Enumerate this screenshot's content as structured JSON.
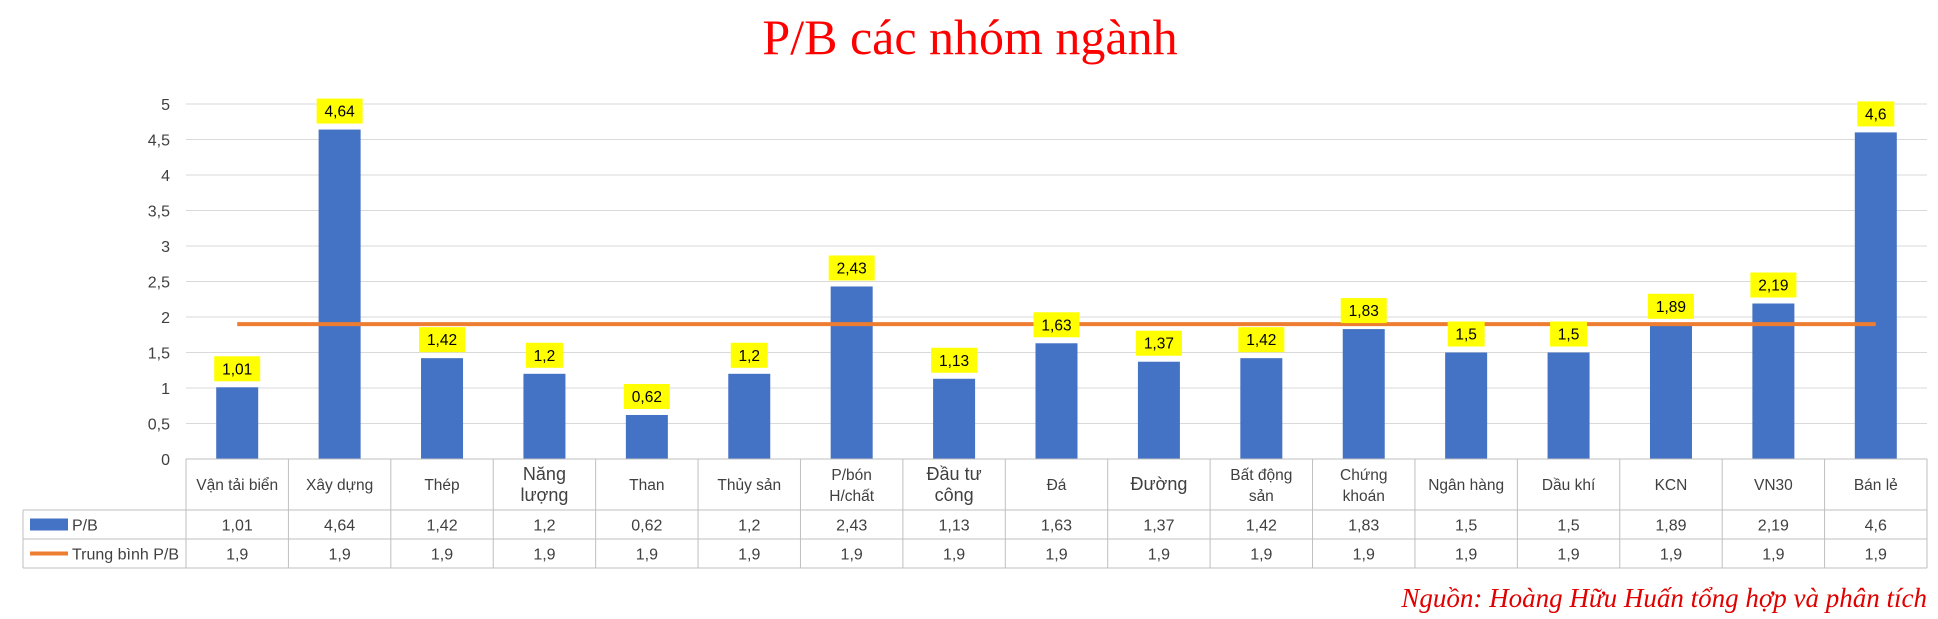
{
  "chart_data": {
    "type": "bar",
    "title": "P/B các nhóm ngành",
    "categories": [
      [
        "Vận tải biển"
      ],
      [
        "Xây dựng"
      ],
      [
        "Thép"
      ],
      [
        "Năng",
        "lượng"
      ],
      [
        "Than"
      ],
      [
        "Thủy sản"
      ],
      [
        "P/bón",
        "H/chất"
      ],
      [
        "Đầu tư",
        "công"
      ],
      [
        "Đá"
      ],
      [
        "Đường"
      ],
      [
        "Bất động",
        "sản"
      ],
      [
        "Chứng",
        "khoán"
      ],
      [
        "Ngân hàng"
      ],
      [
        "Dầu khí"
      ],
      [
        "KCN"
      ],
      [
        "VN30"
      ],
      [
        "Bán lẻ"
      ]
    ],
    "series": [
      {
        "name": "P/B",
        "kind": "bar",
        "color": "#4472c4",
        "values": [
          1.01,
          4.64,
          1.42,
          1.2,
          0.62,
          1.2,
          2.43,
          1.13,
          1.63,
          1.37,
          1.42,
          1.83,
          1.5,
          1.5,
          1.89,
          2.19,
          4.6
        ],
        "value_labels": [
          "1,01",
          "4,64",
          "1,42",
          "1,2",
          "0,62",
          "1,2",
          "2,43",
          "1,13",
          "1,63",
          "1,37",
          "1,42",
          "1,83",
          "1,5",
          "1,5",
          "1,89",
          "2,19",
          "4,6"
        ]
      },
      {
        "name": "Trung bình P/B",
        "kind": "line",
        "color": "#ed7d31",
        "values": [
          1.9,
          1.9,
          1.9,
          1.9,
          1.9,
          1.9,
          1.9,
          1.9,
          1.9,
          1.9,
          1.9,
          1.9,
          1.9,
          1.9,
          1.9,
          1.9,
          1.9
        ],
        "value_labels": [
          "1,9",
          "1,9",
          "1,9",
          "1,9",
          "1,9",
          "1,9",
          "1,9",
          "1,9",
          "1,9",
          "1,9",
          "1,9",
          "1,9",
          "1,9",
          "1,9",
          "1,9",
          "1,9",
          "1,9"
        ]
      }
    ],
    "ylim": [
      0,
      5
    ],
    "yticks": [
      "0",
      "0,5",
      "1",
      "1,5",
      "2",
      "2,5",
      "3",
      "3,5",
      "4",
      "4,5",
      "5"
    ],
    "grid": true,
    "data_label_color": "#ffff00",
    "data_table": true
  },
  "source_note": "Nguồn: Hoàng Hữu Huấn tổng hợp và phân tích"
}
